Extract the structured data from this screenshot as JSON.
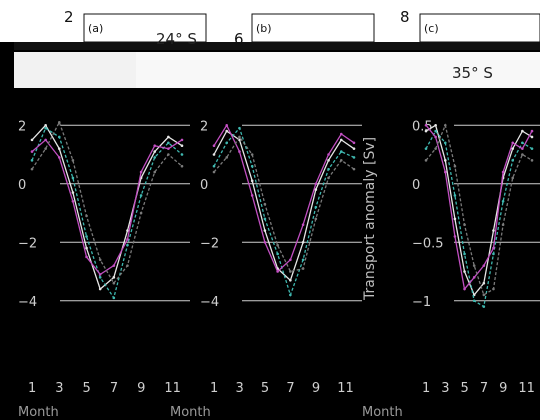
{
  "figure": {
    "background": "#000000",
    "overlay_numbers": [
      "2",
      "6",
      "8"
    ],
    "y_label": "Transport anomaly [Sv]",
    "x_label": "Month"
  },
  "chart_data": [
    {
      "type": "line",
      "panel": "(a)",
      "latitude": "24° S",
      "x": [
        1,
        2,
        3,
        4,
        5,
        6,
        7,
        8,
        9,
        10,
        11,
        12
      ],
      "x_ticks": [
        1,
        3,
        5,
        7,
        9,
        11
      ],
      "x_tick_labels": [
        "1",
        "3",
        "5",
        "7",
        "9",
        "11"
      ],
      "ylim": [
        -5,
        3
      ],
      "y_ticks": [
        -4,
        -2,
        0,
        2
      ],
      "y_tick_labels": [
        "−4",
        "−2",
        "0",
        "2"
      ],
      "grid": true,
      "series": [
        {
          "color": "#e6e6e6",
          "values": [
            1.5,
            2.0,
            1.2,
            -0.3,
            -2.2,
            -3.6,
            -3.2,
            -1.6,
            0.2,
            1.1,
            1.6,
            1.3
          ]
        },
        {
          "color": "#3fb8b0",
          "values": [
            0.8,
            1.9,
            1.6,
            0.2,
            -1.8,
            -3.2,
            -3.9,
            -2.1,
            -0.4,
            0.9,
            1.4,
            1.0
          ]
        },
        {
          "color": "#c24fc2",
          "values": [
            1.1,
            1.5,
            0.9,
            -0.6,
            -2.5,
            -3.1,
            -2.8,
            -1.9,
            0.4,
            1.3,
            1.2,
            1.5
          ]
        },
        {
          "color": "#7a7a7a",
          "values": [
            0.5,
            1.2,
            2.1,
            0.8,
            -1.1,
            -2.6,
            -3.4,
            -2.8,
            -1.0,
            0.4,
            1.0,
            0.6
          ]
        }
      ]
    },
    {
      "type": "line",
      "panel": "(b)",
      "latitude": "",
      "x": [
        1,
        2,
        3,
        4,
        5,
        6,
        7,
        8,
        9,
        10,
        11,
        12
      ],
      "x_ticks": [
        1,
        3,
        5,
        7,
        9,
        11
      ],
      "x_tick_labels": [
        "1",
        "3",
        "5",
        "7",
        "9",
        "11"
      ],
      "ylim": [
        -5,
        3
      ],
      "y_ticks": [
        -4,
        -2,
        0,
        2
      ],
      "y_tick_labels": [
        "−4",
        "−2",
        "0",
        "2"
      ],
      "grid": true,
      "series": [
        {
          "color": "#e6e6e6",
          "values": [
            1.0,
            1.8,
            1.5,
            0.1,
            -1.6,
            -2.9,
            -3.3,
            -2.0,
            -0.2,
            0.8,
            1.5,
            1.2
          ]
        },
        {
          "color": "#3fb8b0",
          "values": [
            0.6,
            1.4,
            1.9,
            0.6,
            -1.2,
            -2.4,
            -3.8,
            -2.6,
            -0.8,
            0.5,
            1.1,
            0.9
          ]
        },
        {
          "color": "#c24fc2",
          "values": [
            1.3,
            2.0,
            1.1,
            -0.4,
            -2.0,
            -3.0,
            -2.6,
            -1.4,
            0.0,
            1.0,
            1.7,
            1.4
          ]
        },
        {
          "color": "#7a7a7a",
          "values": [
            0.4,
            0.9,
            1.6,
            1.0,
            -0.7,
            -2.1,
            -3.0,
            -2.9,
            -1.2,
            0.2,
            0.8,
            0.5
          ]
        }
      ]
    },
    {
      "type": "line",
      "panel": "(c)",
      "latitude": "35° S",
      "x": [
        1,
        2,
        3,
        4,
        5,
        6,
        7,
        8,
        9,
        10,
        11,
        12
      ],
      "x_ticks": [
        1,
        3,
        5,
        7,
        9,
        11
      ],
      "x_tick_labels": [
        "1",
        "3",
        "5",
        "7",
        "9",
        "11"
      ],
      "ylim": [
        -1.25,
        0.75
      ],
      "y_ticks": [
        -1,
        -0.5,
        0,
        0.5
      ],
      "y_tick_labels": [
        "−1",
        "−0.5",
        "0",
        "0.5"
      ],
      "grid": true,
      "series": [
        {
          "color": "#e6e6e6",
          "values": [
            0.45,
            0.5,
            0.2,
            -0.3,
            -0.75,
            -0.95,
            -0.85,
            -0.4,
            0.05,
            0.3,
            0.45,
            0.4
          ]
        },
        {
          "color": "#3fb8b0",
          "values": [
            0.3,
            0.45,
            0.35,
            -0.1,
            -0.6,
            -1.0,
            -1.05,
            -0.6,
            -0.15,
            0.2,
            0.35,
            0.3
          ]
        },
        {
          "color": "#c24fc2",
          "values": [
            0.5,
            0.4,
            0.1,
            -0.45,
            -0.9,
            -0.8,
            -0.7,
            -0.55,
            0.1,
            0.35,
            0.3,
            0.45
          ]
        },
        {
          "color": "#7a7a7a",
          "values": [
            0.2,
            0.3,
            0.5,
            0.15,
            -0.35,
            -0.7,
            -0.95,
            -0.9,
            -0.35,
            0.05,
            0.25,
            0.2
          ]
        }
      ]
    }
  ]
}
